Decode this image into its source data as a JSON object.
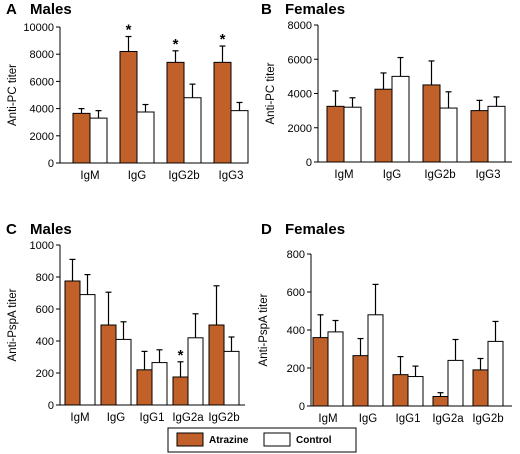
{
  "colors": {
    "atrazine": "#c2602a",
    "control": "#ffffff",
    "outline": "#000000"
  },
  "legend": [
    {
      "label": "Atrazine",
      "color": "#c2602a"
    },
    {
      "label": "Control",
      "color": "#ffffff"
    }
  ],
  "chart_data": [
    {
      "panel": "A",
      "title": "Males",
      "type": "bar",
      "ylabel": "Anti-PC titer",
      "ylim": [
        0,
        10000
      ],
      "yticks": [
        "0",
        "2000",
        "4000",
        "6000",
        "8000",
        "10000"
      ],
      "categories": [
        "IgM",
        "IgG",
        "IgG2b",
        "IgG3"
      ],
      "series": [
        {
          "name": "Atrazine",
          "values": [
            3650,
            8200,
            7400,
            7400
          ],
          "errors": [
            350,
            1100,
            850,
            1200
          ]
        },
        {
          "name": "Control",
          "values": [
            3300,
            3750,
            4800,
            3850
          ],
          "errors": [
            550,
            550,
            1000,
            600
          ]
        }
      ],
      "annotations": [
        {
          "category": "IgG",
          "text": "*"
        },
        {
          "category": "IgG2b",
          "text": "*"
        },
        {
          "category": "IgG3",
          "text": "*"
        }
      ]
    },
    {
      "panel": "B",
      "title": "Females",
      "type": "bar",
      "ylabel": "Anti-PC titer",
      "ylim": [
        0,
        8000
      ],
      "yticks": [
        "0",
        "2000",
        "4000",
        "6000",
        "8000"
      ],
      "categories": [
        "IgM",
        "IgG",
        "IgG2b",
        "IgG3"
      ],
      "series": [
        {
          "name": "Atrazine",
          "values": [
            3250,
            4250,
            4500,
            3000
          ],
          "errors": [
            900,
            950,
            1400,
            600
          ]
        },
        {
          "name": "Control",
          "values": [
            3200,
            5000,
            3150,
            3250
          ],
          "errors": [
            550,
            1100,
            950,
            550
          ]
        }
      ],
      "annotations": []
    },
    {
      "panel": "C",
      "title": "Males",
      "type": "bar",
      "ylabel": "Anti-PspA titer",
      "ylim": [
        0,
        1000
      ],
      "yticks": [
        "0",
        "200",
        "400",
        "600",
        "800",
        "1000"
      ],
      "categories": [
        "IgM",
        "IgG",
        "IgG1",
        "IgG2a",
        "IgG2b"
      ],
      "series": [
        {
          "name": "Atrazine",
          "values": [
            775,
            500,
            220,
            175,
            500
          ],
          "errors": [
            135,
            205,
            115,
            95,
            245
          ]
        },
        {
          "name": "Control",
          "values": [
            690,
            410,
            265,
            420,
            335
          ],
          "errors": [
            125,
            110,
            80,
            150,
            90
          ]
        }
      ],
      "annotations": [
        {
          "category": "IgG2a",
          "text": "*"
        }
      ]
    },
    {
      "panel": "D",
      "title": "Females",
      "type": "bar",
      "ylabel": "Anti-PspA titer",
      "ylim": [
        0,
        800
      ],
      "yticks": [
        "0",
        "200",
        "400",
        "600",
        "800"
      ],
      "categories": [
        "IgM",
        "IgG",
        "IgG1",
        "IgG2a",
        "IgG2b"
      ],
      "series": [
        {
          "name": "Atrazine",
          "values": [
            360,
            265,
            165,
            50,
            190
          ],
          "errors": [
            120,
            90,
            95,
            20,
            60
          ]
        },
        {
          "name": "Control",
          "values": [
            390,
            480,
            155,
            240,
            340
          ],
          "errors": [
            60,
            160,
            55,
            110,
            105
          ]
        }
      ],
      "annotations": []
    }
  ]
}
